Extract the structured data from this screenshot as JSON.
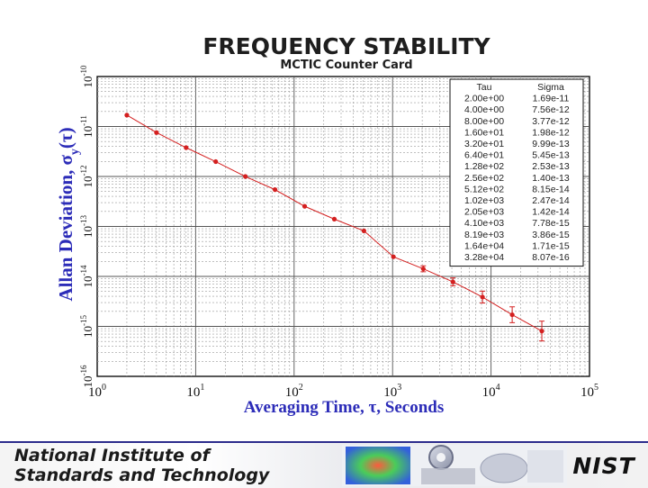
{
  "chart_data": {
    "type": "scatter",
    "title": "FREQUENCY STABILITY",
    "subtitle": "MCTIC Counter Card",
    "xlabel": "Averaging Time, τ, Seconds",
    "ylabel_main": "Allan Deviation, σ",
    "ylabel_sub": "y",
    "ylabel_tail": "(τ)",
    "x_scale": "log",
    "y_scale": "log",
    "xlim": [
      1,
      100000
    ],
    "ylim": [
      1e-16,
      1e-10
    ],
    "x_ticks": [
      {
        "base": "10",
        "exp": "0",
        "value": 1
      },
      {
        "base": "10",
        "exp": "1",
        "value": 10
      },
      {
        "base": "10",
        "exp": "2",
        "value": 100
      },
      {
        "base": "10",
        "exp": "3",
        "value": 1000
      },
      {
        "base": "10",
        "exp": "4",
        "value": 10000
      },
      {
        "base": "10",
        "exp": "5",
        "value": 100000
      }
    ],
    "y_ticks": [
      {
        "base": "10",
        "exp": "-16",
        "value": 1e-16
      },
      {
        "base": "10",
        "exp": "-15",
        "value": 1e-15
      },
      {
        "base": "10",
        "exp": "-14",
        "value": 1e-14
      },
      {
        "base": "10",
        "exp": "-13",
        "value": 1e-13
      },
      {
        "base": "10",
        "exp": "-12",
        "value": 1e-12
      },
      {
        "base": "10",
        "exp": "-11",
        "value": 1e-11
      },
      {
        "base": "10",
        "exp": "-10",
        "value": 1e-10
      }
    ],
    "grid": true,
    "marker_color": "#d42020",
    "table": {
      "headers": [
        "Tau",
        "Sigma"
      ],
      "rows": [
        [
          "2.00e+00",
          "1.69e-11"
        ],
        [
          "4.00e+00",
          "7.56e-12"
        ],
        [
          "8.00e+00",
          "3.77e-12"
        ],
        [
          "1.60e+01",
          "1.98e-12"
        ],
        [
          "3.20e+01",
          "9.99e-13"
        ],
        [
          "6.40e+01",
          "5.45e-13"
        ],
        [
          "1.28e+02",
          "2.53e-13"
        ],
        [
          "2.56e+02",
          "1.40e-13"
        ],
        [
          "5.12e+02",
          "8.15e-14"
        ],
        [
          "1.02e+03",
          "2.47e-14"
        ],
        [
          "2.05e+03",
          "1.42e-14"
        ],
        [
          "4.10e+03",
          "7.78e-15"
        ],
        [
          "8.19e+03",
          "3.86e-15"
        ],
        [
          "1.64e+04",
          "1.71e-15"
        ],
        [
          "3.28e+04",
          "8.07e-16"
        ]
      ]
    },
    "series": [
      {
        "x": [
          2,
          4,
          8,
          16,
          32,
          64,
          128,
          256,
          512,
          1020,
          2050,
          4100,
          8190,
          16400,
          32800
        ],
        "y": [
          1.69e-11,
          7.56e-12,
          3.77e-12,
          1.98e-12,
          9.99e-13,
          5.45e-13,
          2.53e-13,
          1.4e-13,
          8.15e-14,
          2.47e-14,
          1.42e-14,
          7.78e-15,
          3.86e-15,
          1.71e-15,
          8.07e-16
        ]
      }
    ]
  },
  "footer": {
    "line1": "National Institute of",
    "line2": "Standards and Technology",
    "logo_text": "NIST"
  }
}
